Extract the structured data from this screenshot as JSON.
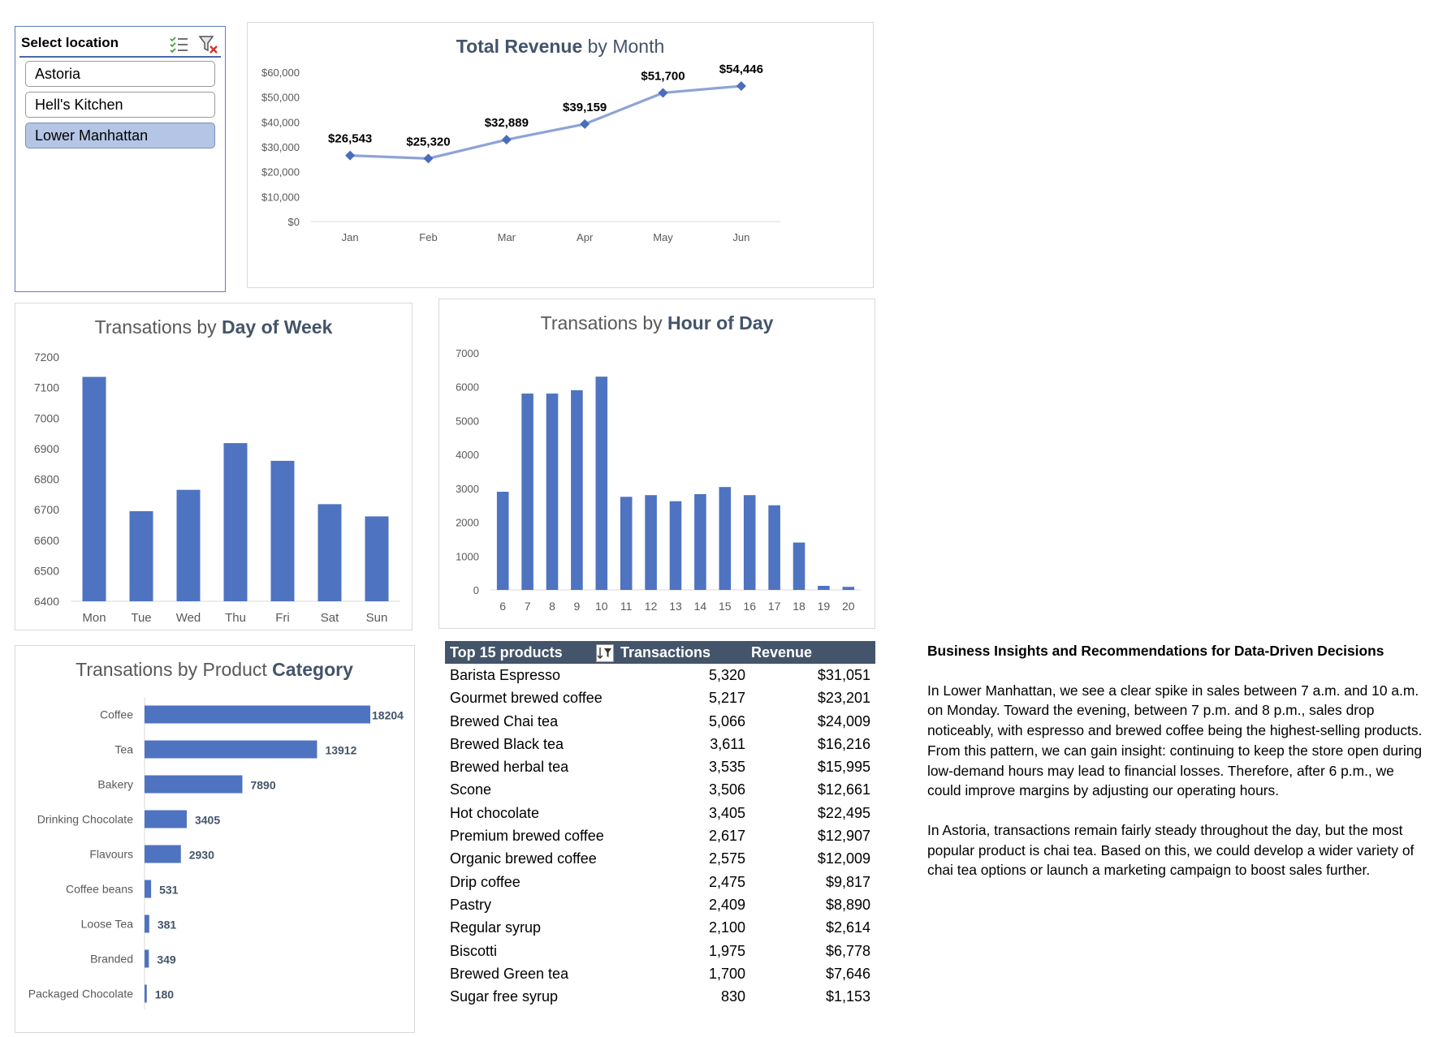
{
  "slicer": {
    "title": "Select location",
    "items": [
      {
        "label": "Astoria",
        "selected": false
      },
      {
        "label": "Hell's Kitchen",
        "selected": false
      },
      {
        "label": "Lower Manhattan",
        "selected": true
      }
    ]
  },
  "chart_data": [
    {
      "id": "revenue",
      "type": "line",
      "title_bold": "Total Revenue",
      "title_rest": " by Month",
      "categories": [
        "Jan",
        "Feb",
        "Mar",
        "Apr",
        "May",
        "Jun"
      ],
      "values": [
        26543,
        25320,
        32889,
        39159,
        51700,
        54446
      ],
      "data_labels": [
        "$26,543",
        "$25,320",
        "$32,889",
        "$39,159",
        "$51,700",
        "$54,446"
      ],
      "yticks": [
        "$0",
        "$10,000",
        "$20,000",
        "$30,000",
        "$40,000",
        "$50,000",
        "$60,000"
      ],
      "ylim": [
        0,
        60000
      ],
      "color": "#8ea3d6",
      "marker_color": "#4a6cbd"
    },
    {
      "id": "dow",
      "type": "bar",
      "title_rest": "Transations by ",
      "title_bold": "Day of Week",
      "categories": [
        "Mon",
        "Tue",
        "Wed",
        "Thu",
        "Fri",
        "Sat",
        "Sun"
      ],
      "values": [
        7135,
        6695,
        6765,
        6918,
        6860,
        6718,
        6678
      ],
      "yticks": [
        "6400",
        "6500",
        "6600",
        "6700",
        "6800",
        "6900",
        "7000",
        "7100",
        "7200"
      ],
      "ylim": [
        6400,
        7200
      ],
      "color": "#4e73c0"
    },
    {
      "id": "hour",
      "type": "bar",
      "title_rest": "Transations by ",
      "title_bold": "Hour of Day",
      "categories": [
        "6",
        "7",
        "8",
        "9",
        "10",
        "11",
        "12",
        "13",
        "14",
        "15",
        "16",
        "17",
        "18",
        "19",
        "20"
      ],
      "values": [
        2900,
        5800,
        5800,
        5900,
        6300,
        2750,
        2800,
        2620,
        2830,
        3040,
        2800,
        2500,
        1400,
        120,
        90
      ],
      "yticks": [
        "0",
        "1000",
        "2000",
        "3000",
        "4000",
        "5000",
        "6000",
        "7000"
      ],
      "ylim": [
        0,
        7000
      ],
      "color": "#4e73c0"
    },
    {
      "id": "category",
      "type": "bar",
      "orientation": "horizontal",
      "title_rest": "Transations by Product ",
      "title_bold": "Category",
      "categories": [
        "Coffee",
        "Tea",
        "Bakery",
        "Drinking Chocolate",
        "Flavours",
        "Coffee beans",
        "Loose Tea",
        "Branded",
        "Packaged Chocolate"
      ],
      "values": [
        18204,
        13912,
        7890,
        3405,
        2930,
        531,
        381,
        349,
        180
      ],
      "data_labels": [
        "18204",
        "13912",
        "7890",
        "3405",
        "2930",
        "531",
        "381",
        "349",
        "180"
      ],
      "color": "#4e73c0"
    }
  ],
  "top15": {
    "headers": {
      "name": "Top 15 products",
      "tx": "Transactions",
      "rev": "Revenue"
    },
    "rows": [
      {
        "name": "Barista Espresso",
        "tx": "5,320",
        "rev": "$31,051"
      },
      {
        "name": "Gourmet brewed coffee",
        "tx": "5,217",
        "rev": "$23,201"
      },
      {
        "name": "Brewed Chai tea",
        "tx": "5,066",
        "rev": "$24,009"
      },
      {
        "name": "Brewed Black tea",
        "tx": "3,611",
        "rev": "$16,216"
      },
      {
        "name": "Brewed herbal tea",
        "tx": "3,535",
        "rev": "$15,995"
      },
      {
        "name": "Scone",
        "tx": "3,506",
        "rev": "$12,661"
      },
      {
        "name": "Hot chocolate",
        "tx": "3,405",
        "rev": "$22,495"
      },
      {
        "name": "Premium brewed coffee",
        "tx": "2,617",
        "rev": "$12,907"
      },
      {
        "name": "Organic brewed coffee",
        "tx": "2,575",
        "rev": "$12,009"
      },
      {
        "name": "Drip coffee",
        "tx": "2,475",
        "rev": "$9,817"
      },
      {
        "name": "Pastry",
        "tx": "2,409",
        "rev": "$8,890"
      },
      {
        "name": "Regular syrup",
        "tx": "2,100",
        "rev": "$2,614"
      },
      {
        "name": "Biscotti",
        "tx": "1,975",
        "rev": "$6,778"
      },
      {
        "name": "Brewed Green tea",
        "tx": "1,700",
        "rev": "$7,646"
      },
      {
        "name": "Sugar free syrup",
        "tx": "830",
        "rev": "$1,153"
      }
    ]
  },
  "insights": {
    "heading": "Business Insights and Recommendations for Data-Driven Decisions",
    "paragraphs": [
      "In Lower Manhattan, we see a clear spike in sales between 7 a.m. and 10 a.m. on Monday. Toward the evening, between 7 p.m. and 8 p.m., sales drop noticeably, with espresso and brewed coffee being the highest-selling products. From this pattern, we can gain insight: continuing to keep the store open during low-demand hours may lead to financial losses. Therefore, after 6 p.m., we could improve margins by adjusting our operating hours.",
      "In Astoria, transactions remain fairly steady throughout the day, but the most popular product is chai tea. Based on this, we could develop a wider variety of chai tea options or launch a marketing campaign to boost sales further."
    ]
  }
}
